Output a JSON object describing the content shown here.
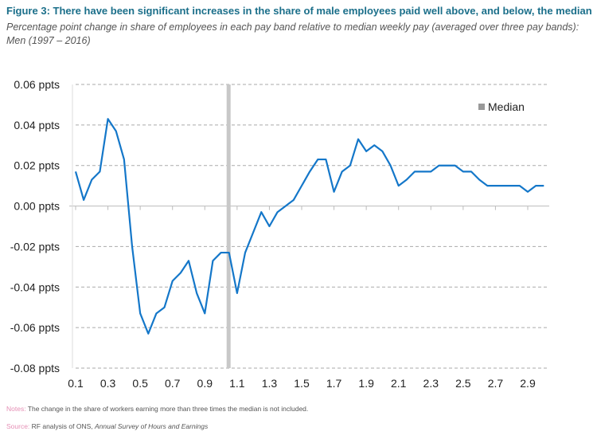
{
  "title": "Figure 3: There have been significant increases in the share of male employees paid well above, and below, the median",
  "subtitle": "Percentage point change in share of employees in each pay band relative to median weekly pay (averaged over three pay bands): Men (1997 – 2016)",
  "notes": {
    "label": "Notes:",
    "text": " The change in the share of workers earning more than three times the median is not included."
  },
  "source": {
    "label": "Source:",
    "text": " RF analysis of ONS, ",
    "italic": "Annual Survey of Hours and Earnings"
  },
  "chart_data": {
    "type": "line",
    "x": [
      0.1,
      0.15,
      0.2,
      0.25,
      0.3,
      0.35,
      0.4,
      0.45,
      0.5,
      0.55,
      0.6,
      0.65,
      0.7,
      0.75,
      0.8,
      0.85,
      0.9,
      0.95,
      1.0,
      1.05,
      1.1,
      1.15,
      1.2,
      1.25,
      1.3,
      1.35,
      1.4,
      1.45,
      1.5,
      1.55,
      1.6,
      1.65,
      1.7,
      1.75,
      1.8,
      1.85,
      1.9,
      1.95,
      2.0,
      2.05,
      2.1,
      2.15,
      2.2,
      2.25,
      2.3,
      2.35,
      2.4,
      2.45,
      2.5,
      2.55,
      2.6,
      2.65,
      2.7,
      2.75,
      2.8,
      2.85,
      2.9,
      2.95,
      3.0
    ],
    "values": [
      0.017,
      0.003,
      0.013,
      0.017,
      0.043,
      0.037,
      0.023,
      -0.02,
      -0.053,
      -0.063,
      -0.053,
      -0.05,
      -0.037,
      -0.033,
      -0.027,
      -0.043,
      -0.053,
      -0.027,
      -0.023,
      -0.023,
      -0.043,
      -0.023,
      -0.013,
      -0.003,
      -0.01,
      -0.003,
      0.0,
      0.003,
      0.01,
      0.017,
      0.023,
      0.023,
      0.007,
      0.017,
      0.02,
      0.033,
      0.027,
      0.03,
      0.027,
      0.02,
      0.01,
      0.013,
      0.017,
      0.017,
      0.017,
      0.02,
      0.02,
      0.02,
      0.017,
      0.017,
      0.013,
      0.01,
      0.01,
      0.01,
      0.01,
      0.01,
      0.007,
      0.01,
      0.01
    ],
    "xticks": [
      "0.1",
      "0.3",
      "0.5",
      "0.7",
      "0.9",
      "1.1",
      "1.3",
      "1.5",
      "1.7",
      "1.9",
      "2.1",
      "2.3",
      "2.5",
      "2.7",
      "2.9"
    ],
    "yticks": [
      "0.06 ppts",
      "0.04 ppts",
      "0.02 ppts",
      "0.00 ppts",
      "-0.02 ppts",
      "-0.04 ppts",
      "-0.06 ppts",
      "-0.08 ppts"
    ],
    "ylim": [
      -0.08,
      0.06
    ],
    "median_x": 1.05,
    "legend": {
      "label": "Median",
      "position": "top-right"
    },
    "grid": "dashed horizontal",
    "colors": {
      "line": "#1477c9",
      "median": "#c8c8c8"
    }
  }
}
